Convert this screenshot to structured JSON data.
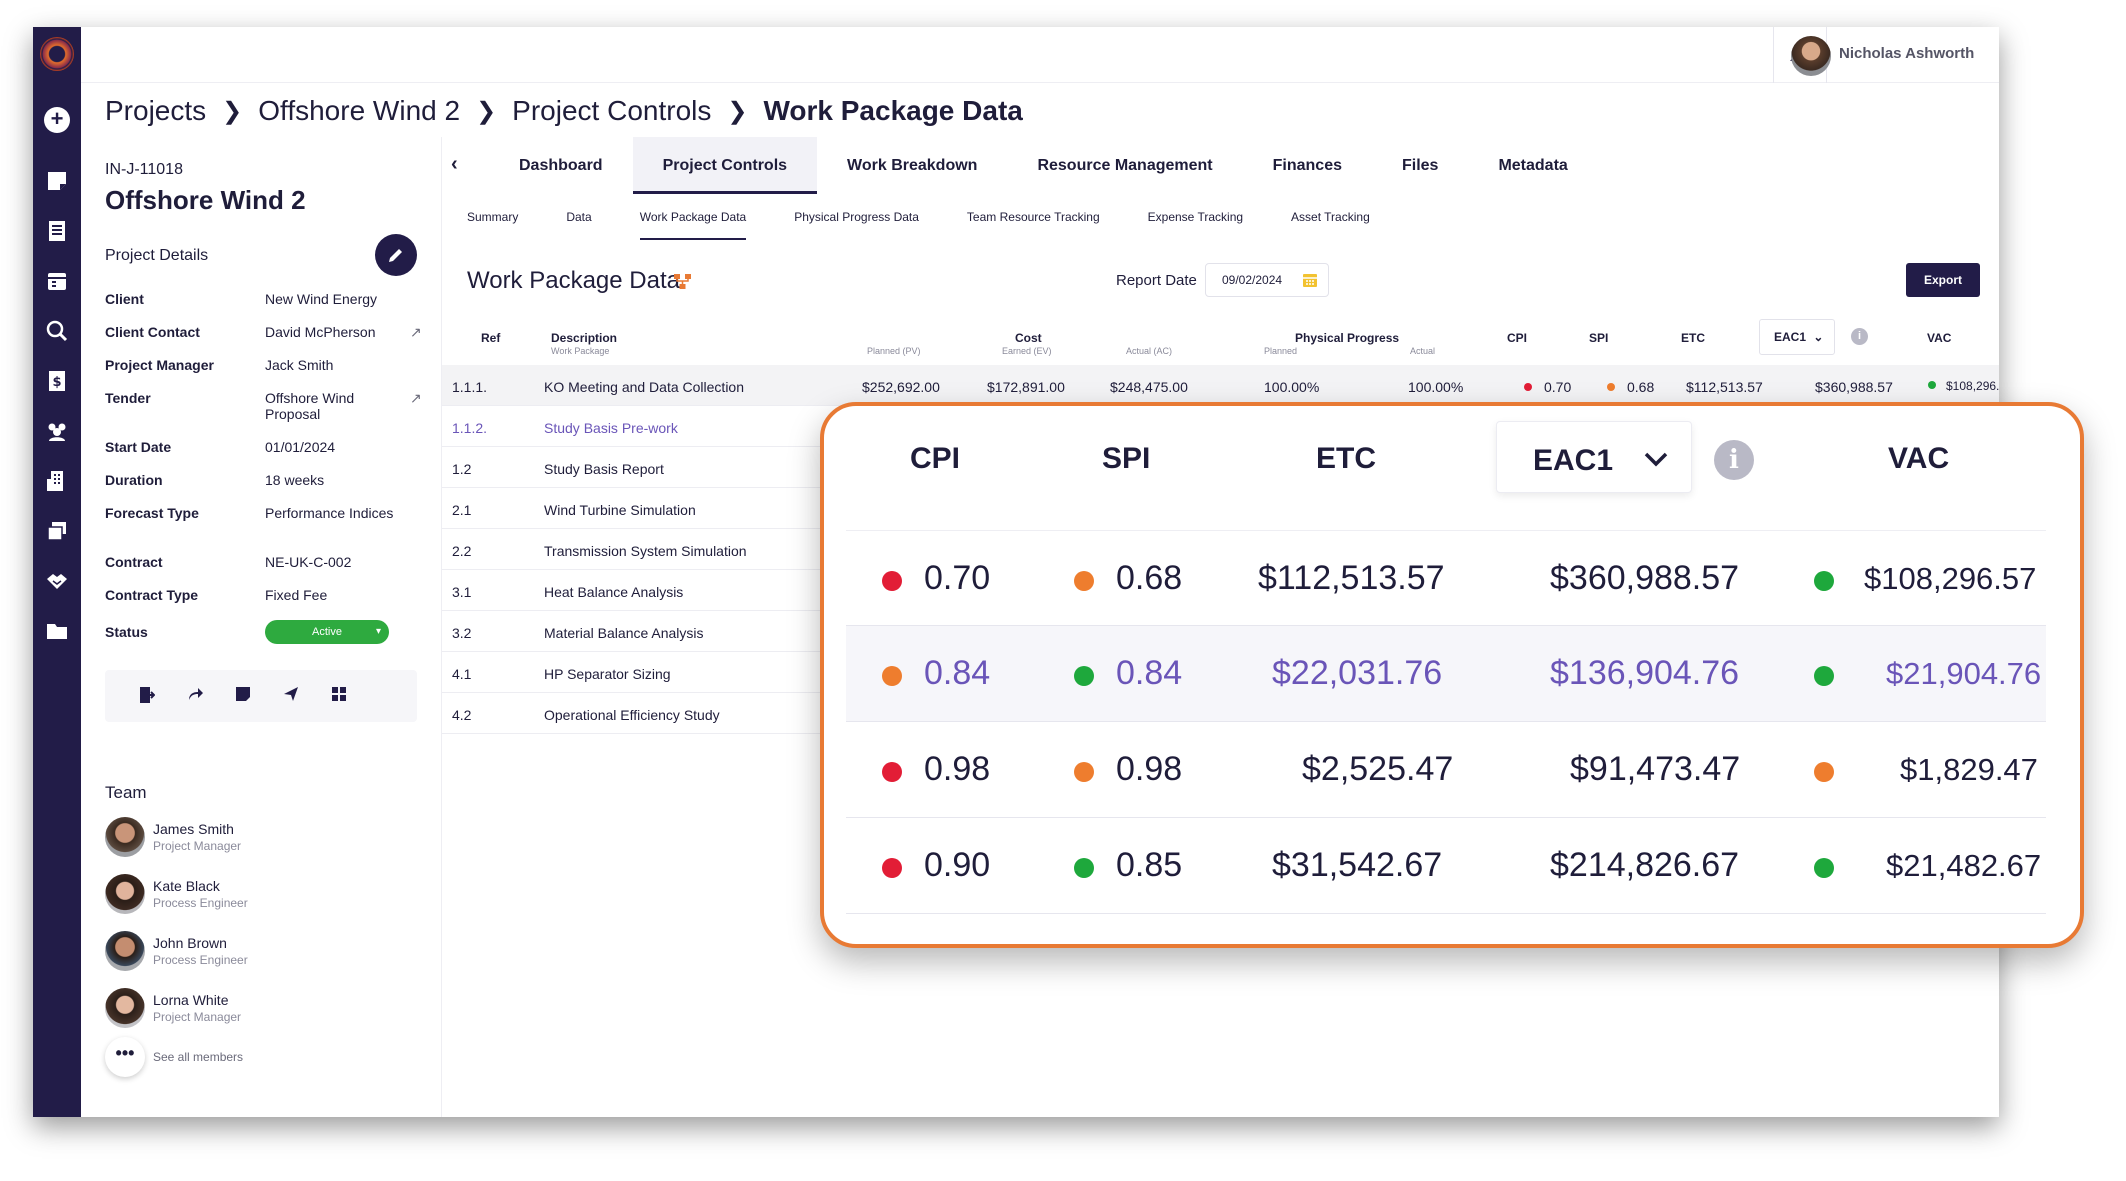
{
  "user": {
    "name": "Nicholas Ashworth"
  },
  "breadcrumb": {
    "items": [
      "Projects",
      "Offshore Wind 2",
      "Project Controls"
    ],
    "current": "Work Package Data"
  },
  "project": {
    "code": "IN-J-11018",
    "title": "Offshore Wind 2",
    "details_label": "Project Details",
    "fields": [
      {
        "key": "Client",
        "value": "New Wind Energy",
        "link": false
      },
      {
        "key": "Client Contact",
        "value": "David McPherson",
        "link": true
      },
      {
        "key": "Project Manager",
        "value": "Jack Smith",
        "link": false
      },
      {
        "key": "Tender",
        "value": "Offshore Wind Proposal",
        "link": true
      },
      {
        "key": "Start Date",
        "value": "01/01/2024",
        "link": false
      },
      {
        "key": "Duration",
        "value": "18 weeks",
        "link": false
      },
      {
        "key": "Forecast Type",
        "value": "Performance Indices",
        "link": false
      },
      {
        "key": "Contract",
        "value": "NE-UK-C-002",
        "link": false
      },
      {
        "key": "Contract Type",
        "value": "Fixed Fee",
        "link": false
      }
    ],
    "status_label": "Status",
    "status_value": "Active",
    "status_color": "#2eaa3f"
  },
  "team": {
    "label": "Team",
    "members": [
      {
        "name": "James Smith",
        "role": "Project Manager"
      },
      {
        "name": "Kate Black",
        "role": "Process Engineer"
      },
      {
        "name": "John Brown",
        "role": "Process Engineer"
      },
      {
        "name": "Lorna White",
        "role": "Project Manager"
      }
    ],
    "see_all": "See all members"
  },
  "tabs": [
    "Dashboard",
    "Project Controls",
    "Work Breakdown",
    "Resource Management",
    "Finances",
    "Files",
    "Metadata"
  ],
  "active_tab": "Project Controls",
  "subtabs": [
    "Summary",
    "Data",
    "Work Package Data",
    "Physical Progress Data",
    "Team Resource Tracking",
    "Expense Tracking",
    "Asset Tracking"
  ],
  "active_subtab": "Work Package Data",
  "page": {
    "title": "Work Package Data",
    "report_date_label": "Report Date",
    "report_date_value": "09/02/2024",
    "export_label": "Export"
  },
  "table": {
    "headers": {
      "ref": "Ref",
      "description": "Description",
      "description_sub": "Work Package",
      "cost": "Cost",
      "planned_pv": "Planned (PV)",
      "earned_ev": "Earned (EV)",
      "actual_ac": "Actual (AC)",
      "progress": "Physical Progress",
      "planned": "Planned",
      "actual": "Actual",
      "cpi": "CPI",
      "spi": "SPI",
      "etc": "ETC",
      "eac": "EAC1",
      "vac": "VAC"
    },
    "rows": [
      {
        "ref": "1.1.1.",
        "desc": "KO Meeting and Data Collection",
        "pv": "$252,692.00",
        "ev": "$172,891.00",
        "ac": "$248,475.00",
        "planned": "100.00%",
        "actual": "100.00%",
        "cpi": "0.70",
        "spi": "0.68",
        "etc": "$112,513.57",
        "eac": "$360,988.57",
        "vac": "$108,296.57"
      },
      {
        "ref": "1.1.2.",
        "desc": "Study Basis Pre-work"
      },
      {
        "ref": "1.2",
        "desc": "Study Basis Report"
      },
      {
        "ref": "2.1",
        "desc": "Wind Turbine Simulation"
      },
      {
        "ref": "2.2",
        "desc": "Transmission System Simulation"
      },
      {
        "ref": "3.1",
        "desc": "Heat Balance Analysis"
      },
      {
        "ref": "3.2",
        "desc": "Material Balance Analysis"
      },
      {
        "ref": "4.1",
        "desc": "HP Separator Sizing"
      },
      {
        "ref": "4.2",
        "desc": "Operational Efficiency Study"
      }
    ]
  },
  "zoom": {
    "headers": {
      "cpi": "CPI",
      "spi": "SPI",
      "etc": "ETC",
      "eac": "EAC1",
      "vac": "VAC"
    },
    "rows": [
      {
        "cpi": "0.70",
        "cpi_status": "red",
        "spi": "0.68",
        "spi_status": "orange",
        "etc": "$112,513.57",
        "eac": "$360,988.57",
        "vac": "$108,296.57",
        "vac_status": "green"
      },
      {
        "cpi": "0.84",
        "cpi_status": "orange",
        "spi": "0.84",
        "spi_status": "green",
        "etc": "$22,031.76",
        "eac": "$136,904.76",
        "vac": "$21,904.76",
        "vac_status": "green"
      },
      {
        "cpi": "0.98",
        "cpi_status": "red",
        "spi": "0.98",
        "spi_status": "orange",
        "etc": "$2,525.47",
        "eac": "$91,473.47",
        "vac": "$1,829.47",
        "vac_status": "orange"
      },
      {
        "cpi": "0.90",
        "cpi_status": "red",
        "spi": "0.85",
        "spi_status": "green",
        "etc": "$31,542.67",
        "eac": "$214,826.67",
        "vac": "$21,482.67",
        "vac_status": "green"
      }
    ]
  },
  "colors": {
    "red": "#e21d36",
    "orange": "#ee7d2e",
    "green": "#1ea83c",
    "navy": "#221c48",
    "accent": "#e87a34"
  }
}
